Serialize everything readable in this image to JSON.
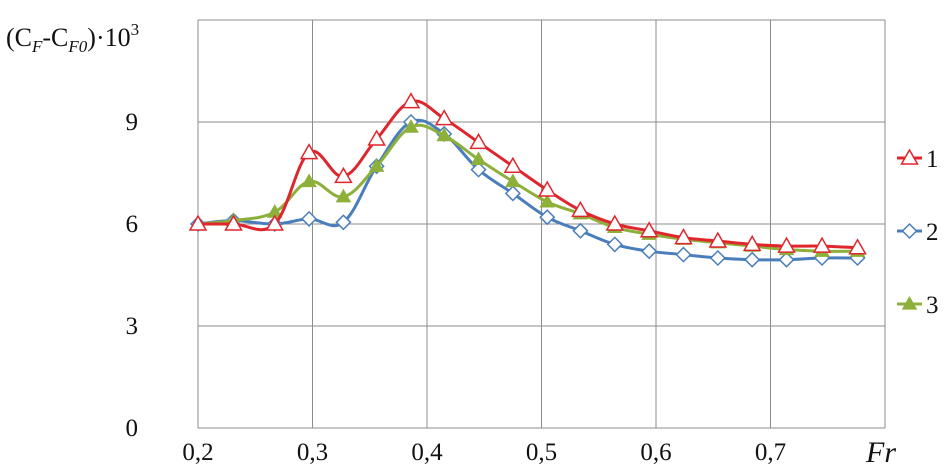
{
  "chart_data": {
    "type": "line",
    "ylabel": "(C_F-C_F0)·10^3",
    "ylabel_parts": {
      "open": "(C",
      "sub1": "F",
      "minus": "-C",
      "sub2": "F0",
      "close": ")·10",
      "sup": "3"
    },
    "xlabel": "Fr",
    "xlim": [
      0.2,
      0.8
    ],
    "ylim": [
      0,
      12
    ],
    "x_ticks": [
      "0,2",
      "0,3",
      "0,4",
      "0,5",
      "0,6",
      "0,7"
    ],
    "y_ticks": [
      "0",
      "3",
      "6",
      "9"
    ],
    "grid": true,
    "legend_position": "right",
    "series": [
      {
        "name": "1",
        "color": "#e0262d",
        "marker": "triangle-open",
        "x": [
          0.2,
          0.231,
          0.267,
          0.297,
          0.327,
          0.356,
          0.386,
          0.415,
          0.445,
          0.475,
          0.505,
          0.534,
          0.564,
          0.594,
          0.624,
          0.654,
          0.684,
          0.714,
          0.745,
          0.776
        ],
        "y": [
          6.0,
          6.0,
          6.0,
          8.1,
          7.4,
          8.5,
          9.6,
          9.1,
          8.4,
          7.7,
          7.0,
          6.4,
          6.0,
          5.8,
          5.6,
          5.5,
          5.4,
          5.35,
          5.35,
          5.3
        ]
      },
      {
        "name": "2",
        "color": "#4a7ebb",
        "marker": "diamond-open",
        "x": [
          0.2,
          0.231,
          0.267,
          0.297,
          0.327,
          0.356,
          0.386,
          0.415,
          0.445,
          0.475,
          0.505,
          0.534,
          0.564,
          0.594,
          0.624,
          0.654,
          0.684,
          0.714,
          0.745,
          0.776
        ],
        "y": [
          6.0,
          6.1,
          6.0,
          6.15,
          6.05,
          7.7,
          9.0,
          8.65,
          7.6,
          6.9,
          6.2,
          5.8,
          5.4,
          5.2,
          5.1,
          5.0,
          4.95,
          4.95,
          5.0,
          5.0
        ]
      },
      {
        "name": "3",
        "color": "#8db03a",
        "marker": "triangle-filled",
        "x": [
          0.2,
          0.231,
          0.267,
          0.297,
          0.327,
          0.356,
          0.386,
          0.415,
          0.445,
          0.475,
          0.505,
          0.534,
          0.564,
          0.594,
          0.624,
          0.654,
          0.684,
          0.714,
          0.745,
          0.776
        ],
        "y": [
          6.0,
          6.1,
          6.35,
          7.25,
          6.8,
          7.7,
          8.85,
          8.6,
          7.9,
          7.25,
          6.65,
          6.3,
          5.9,
          5.7,
          5.55,
          5.45,
          5.35,
          5.25,
          5.2,
          5.2
        ]
      }
    ]
  }
}
